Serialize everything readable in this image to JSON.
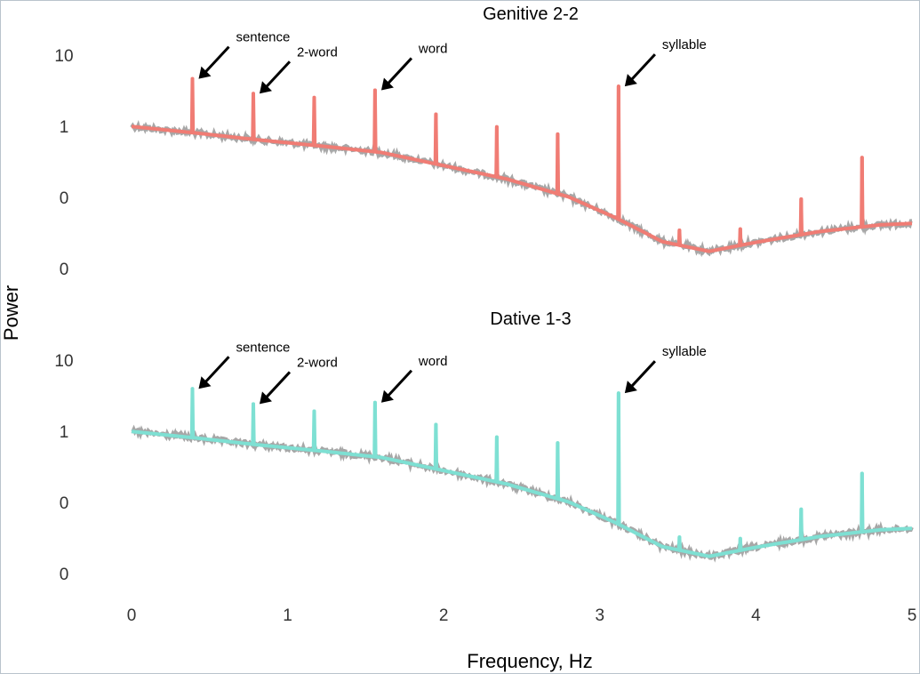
{
  "chart_data": {
    "type": "line",
    "x_axis_label": "Frequency, Hz",
    "y_axis_label": "Power",
    "x_ticks": [
      "0",
      "1",
      "2",
      "3",
      "4",
      "5"
    ],
    "xlim": [
      0,
      5
    ],
    "y_ticks": [
      "10",
      "1",
      "0",
      "0"
    ],
    "y_scale": "log",
    "ylim_decades": [
      -3,
      1
    ],
    "grid": false,
    "panels": [
      {
        "title": "Genitive 2-2",
        "series_color": "#f07c74",
        "baseline": [
          {
            "x": 0.0,
            "y": 0.46
          },
          {
            "x": 0.4,
            "y": 0.35
          },
          {
            "x": 0.8,
            "y": 0.26
          },
          {
            "x": 1.2,
            "y": 0.2
          },
          {
            "x": 1.6,
            "y": 0.15
          },
          {
            "x": 2.0,
            "y": 0.085
          },
          {
            "x": 2.4,
            "y": 0.048
          },
          {
            "x": 2.8,
            "y": 0.022
          },
          {
            "x": 3.1,
            "y": 0.009
          },
          {
            "x": 3.4,
            "y": 0.0032
          },
          {
            "x": 3.7,
            "y": 0.0021
          },
          {
            "x": 4.0,
            "y": 0.0031
          },
          {
            "x": 4.4,
            "y": 0.0049
          },
          {
            "x": 4.8,
            "y": 0.0066
          },
          {
            "x": 5.0,
            "y": 0.007
          }
        ],
        "peaks": [
          {
            "x": 0.39,
            "y": 3.6
          },
          {
            "x": 0.78,
            "y": 1.9
          },
          {
            "x": 1.17,
            "y": 1.6
          },
          {
            "x": 1.56,
            "y": 2.2
          },
          {
            "x": 1.95,
            "y": 0.78
          },
          {
            "x": 2.34,
            "y": 0.45
          },
          {
            "x": 2.73,
            "y": 0.33
          },
          {
            "x": 3.12,
            "y": 2.6
          },
          {
            "x": 3.51,
            "y": 0.0052
          },
          {
            "x": 3.9,
            "y": 0.0055
          },
          {
            "x": 4.29,
            "y": 0.02
          },
          {
            "x": 4.68,
            "y": 0.12
          }
        ],
        "annotations": [
          {
            "text": "sentence",
            "x": 0.39,
            "y": 3.6
          },
          {
            "text": "2-word",
            "x": 0.78,
            "y": 1.9
          },
          {
            "text": "word",
            "x": 1.56,
            "y": 2.2
          },
          {
            "text": "syllable",
            "x": 3.12,
            "y": 2.6
          }
        ]
      },
      {
        "title": "Dative 1-3",
        "series_color": "#7ee0d3",
        "baseline": [
          {
            "x": 0.0,
            "y": 0.46
          },
          {
            "x": 0.4,
            "y": 0.35
          },
          {
            "x": 0.8,
            "y": 0.26
          },
          {
            "x": 1.2,
            "y": 0.2
          },
          {
            "x": 1.6,
            "y": 0.15
          },
          {
            "x": 2.0,
            "y": 0.085
          },
          {
            "x": 2.4,
            "y": 0.048
          },
          {
            "x": 2.8,
            "y": 0.022
          },
          {
            "x": 3.1,
            "y": 0.009
          },
          {
            "x": 3.4,
            "y": 0.0032
          },
          {
            "x": 3.7,
            "y": 0.0021
          },
          {
            "x": 4.0,
            "y": 0.0031
          },
          {
            "x": 4.4,
            "y": 0.0049
          },
          {
            "x": 4.8,
            "y": 0.0066
          },
          {
            "x": 5.0,
            "y": 0.007
          }
        ],
        "peaks": [
          {
            "x": 0.39,
            "y": 2.9
          },
          {
            "x": 0.78,
            "y": 1.5
          },
          {
            "x": 1.17,
            "y": 1.1
          },
          {
            "x": 1.56,
            "y": 1.6
          },
          {
            "x": 1.95,
            "y": 0.62
          },
          {
            "x": 2.34,
            "y": 0.36
          },
          {
            "x": 2.73,
            "y": 0.28
          },
          {
            "x": 3.12,
            "y": 2.4
          },
          {
            "x": 3.51,
            "y": 0.0048
          },
          {
            "x": 3.9,
            "y": 0.0045
          },
          {
            "x": 4.29,
            "y": 0.016
          },
          {
            "x": 4.68,
            "y": 0.075
          }
        ],
        "annotations": [
          {
            "text": "sentence",
            "x": 0.39,
            "y": 2.9
          },
          {
            "text": "2-word",
            "x": 0.78,
            "y": 1.5
          },
          {
            "text": "word",
            "x": 1.56,
            "y": 1.6
          },
          {
            "text": "syllable",
            "x": 3.12,
            "y": 2.4
          }
        ]
      }
    ]
  }
}
